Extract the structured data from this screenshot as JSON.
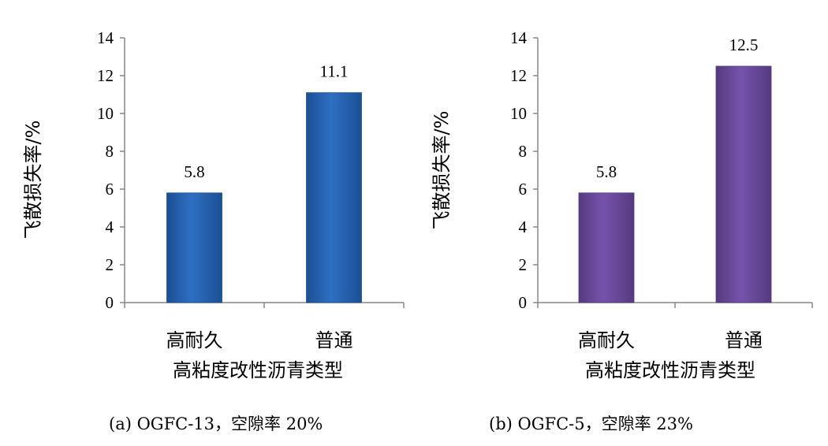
{
  "chart_data": [
    {
      "type": "bar",
      "categories": [
        "高耐久",
        "普通"
      ],
      "values": [
        5.8,
        11.1
      ],
      "data_labels": [
        "5.8",
        "11.1"
      ],
      "xlabel": "高粘度改性沥青类型",
      "ylabel": "飞散损失率/%",
      "ylim": [
        0,
        14
      ],
      "yticks": [
        0,
        2,
        4,
        6,
        8,
        10,
        12,
        14
      ],
      "grid": false,
      "bar_color": "#2e6fc4",
      "bar_edge_color": "#1c4f93",
      "caption": "(a) OGFC-13，空隙率 20%"
    },
    {
      "type": "bar",
      "categories": [
        "高耐久",
        "普通"
      ],
      "values": [
        5.8,
        12.5
      ],
      "data_labels": [
        "5.8",
        "12.5"
      ],
      "xlabel": "高粘度改性沥青类型",
      "ylabel": "飞散损失率/%",
      "ylim": [
        0,
        14
      ],
      "yticks": [
        0,
        2,
        4,
        6,
        8,
        10,
        12,
        14
      ],
      "grid": false,
      "bar_color": "#7653ab",
      "bar_edge_color": "#553a80",
      "caption": "(b) OGFC-5，空隙率 23%"
    }
  ]
}
